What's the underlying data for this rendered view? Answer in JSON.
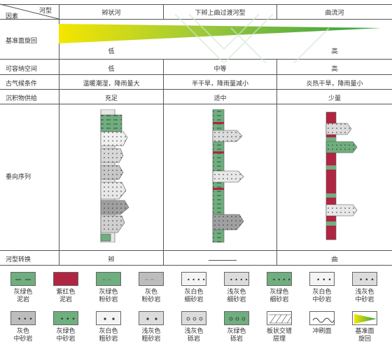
{
  "header": {
    "corner_top": "河型",
    "corner_bottom": "因素",
    "col1": "辫状河",
    "col2": "下辫上曲过渡河型",
    "col3": "曲流河"
  },
  "rows": [
    {
      "label": "基准面旋回",
      "c1": "低",
      "c2": "",
      "c3": "高"
    },
    {
      "label": "可容纳空间",
      "c1": "低",
      "c2": "中等",
      "c3": "高"
    },
    {
      "label": "古气候条件",
      "c1": "温暖潮湿，降雨量大",
      "c2": "半干旱，降雨量减小",
      "c3": "炎热干旱，降雨量小"
    },
    {
      "label": "沉积物供给",
      "c1": "充足",
      "c2": "适中",
      "c3": "少量"
    },
    {
      "label": "垂向序列",
      "c1": "",
      "c2": "",
      "c3": ""
    },
    {
      "label": "河型转换",
      "c1": "辫",
      "c2": "",
      "c3": "曲"
    }
  ],
  "legend": [
    {
      "line1": "灰绿色",
      "line2": "泥岩",
      "icon": "greygreen-mudstone"
    },
    {
      "line1": "紫红色",
      "line2": "泥岩",
      "icon": "purplered-mudstone"
    },
    {
      "line1": "灰绿色",
      "line2": "粉砂岩",
      "icon": "greygreen-siltstone"
    },
    {
      "line1": "灰色",
      "line2": "粉砂岩",
      "icon": "grey-siltstone"
    },
    {
      "line1": "灰白色",
      "line2": "细砂岩",
      "icon": "greywhite-finesandstone"
    },
    {
      "line1": "浅灰色",
      "line2": "细砂岩",
      "icon": "lightgrey-finesandstone"
    },
    {
      "line1": "灰绿色",
      "line2": "细砂岩",
      "icon": "greygreen-finesandstone"
    },
    {
      "line1": "灰白色",
      "line2": "中砂岩",
      "icon": "greywhite-mediumsandstone"
    },
    {
      "line1": "浅灰色",
      "line2": "中砂岩",
      "icon": "lightgrey-mediumsandstone"
    },
    {
      "line1": "灰色",
      "line2": "中砂岩",
      "icon": "grey-mediumsandstone"
    },
    {
      "line1": "灰绿色",
      "line2": "中砂岩",
      "icon": "greygreen-mediumsandstone"
    },
    {
      "line1": "灰白色",
      "line2": "粗砂岩",
      "icon": "greywhite-coarsesandstone"
    },
    {
      "line1": "浅灰色",
      "line2": "粗砂岩",
      "icon": "lightgrey-coarsesandstone"
    },
    {
      "line1": "浅灰色",
      "line2": "砾岩",
      "icon": "lightgrey-conglomerate"
    },
    {
      "line1": "灰绿色",
      "line2": "砾岩",
      "icon": "greygreen-conglomerate"
    },
    {
      "line1": "板状交错",
      "line2": "层理",
      "icon": "tabular-cross-bedding"
    },
    {
      "line1": "冲刷面",
      "line2": "",
      "icon": "scour-surface"
    },
    {
      "line1": "基准面",
      "line2": "旋回",
      "icon": "base-level-cycle"
    }
  ],
  "colors": {
    "greygreen": "#6fae7e",
    "purplered": "#b02541",
    "grey": "#bdbdbd",
    "lightgrey": "#dcdcdc",
    "greywhite": "#f4f4f4",
    "wedge_start": "#f5e600",
    "wedge_end": "#2f9e44"
  }
}
